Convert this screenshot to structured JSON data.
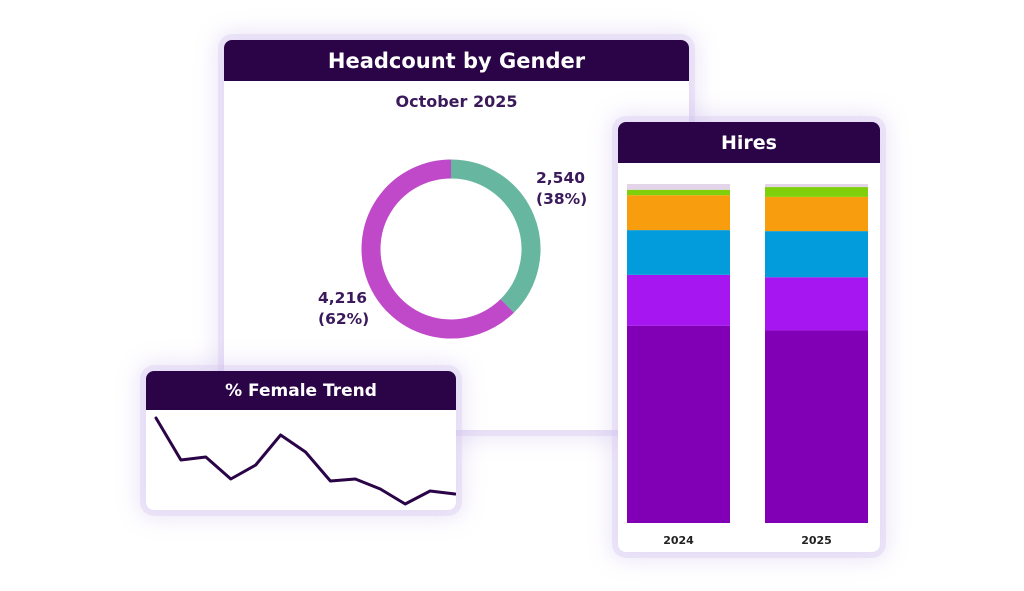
{
  "colors": {
    "header_bg": "#2a0446",
    "accent_purple": "#2a0446",
    "donut_teal": "#66b6a0",
    "donut_magenta": "#bf49c8"
  },
  "cards": {
    "gender": {
      "title": "Headcount by Gender",
      "subtitle": "October 2025"
    },
    "hires": {
      "title": "Hires"
    },
    "trend": {
      "title": "% Female Trend"
    }
  },
  "donut_labels": {
    "teal_value": "2,540",
    "teal_pct": "(38%)",
    "magenta_value": "4,216",
    "magenta_pct": "(62%)"
  },
  "chart_data": [
    {
      "type": "pie",
      "title": "Headcount by Gender",
      "subtitle": "October 2025",
      "slices": [
        {
          "value": 2540,
          "percent": 38,
          "color": "#66b6a0"
        },
        {
          "value": 4216,
          "percent": 62,
          "color": "#bf49c8"
        }
      ],
      "donut": true
    },
    {
      "type": "bar",
      "stacked": true,
      "normalized": true,
      "title": "Hires",
      "categories": [
        "2024",
        "2025"
      ],
      "ylim": [
        0,
        100
      ],
      "series": [
        {
          "values": [
            58.2,
            56.8
          ],
          "color": "#8100b5"
        },
        {
          "values": [
            15.0,
            15.7
          ],
          "color": "#a516f0"
        },
        {
          "values": [
            13.2,
            13.6
          ],
          "color": "#029bdc"
        },
        {
          "values": [
            10.3,
            10.1
          ],
          "color": "#f89d0e"
        },
        {
          "values": [
            1.6,
            2.9
          ],
          "color": "#7fd00b"
        },
        {
          "values": [
            1.7,
            0.9
          ],
          "color": "#e3d4ea"
        }
      ]
    },
    {
      "type": "line",
      "title": "% Female Trend",
      "x": [
        1,
        2,
        3,
        4,
        5,
        6,
        7,
        8,
        9,
        10,
        11,
        12,
        13
      ],
      "values": [
        92,
        50,
        53,
        31,
        45,
        75,
        58,
        29,
        31,
        21,
        6,
        19,
        16
      ],
      "ylim": [
        0,
        100
      ],
      "color": "#2a0446"
    }
  ]
}
